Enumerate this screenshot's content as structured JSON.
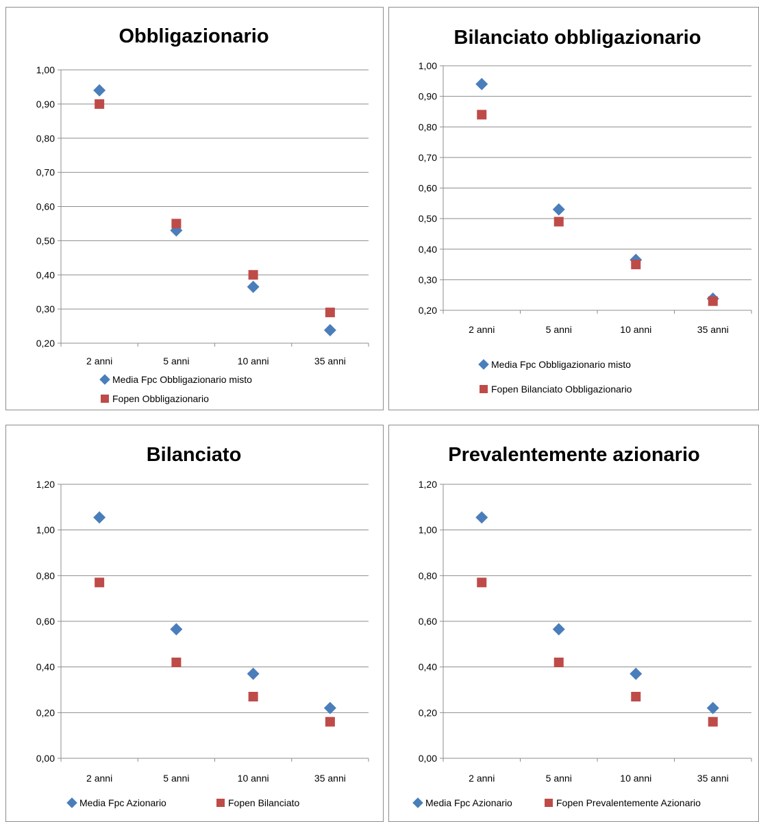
{
  "chart_data": [
    {
      "type": "scatter",
      "title": "Obbligazionario",
      "categories": [
        "2 anni",
        "5 anni",
        "10 anni",
        "35 anni"
      ],
      "y_ticks": [
        "1,00",
        "0,90",
        "0,80",
        "0,70",
        "0,60",
        "0,50",
        "0,40",
        "0,30",
        "0,20"
      ],
      "ylim": [
        0.2,
        1.0
      ],
      "grid": true,
      "legend_position": "bottom",
      "series": [
        {
          "name": "Media Fpc Obbligazionario misto",
          "marker": "diamond",
          "color": "#4a7ebb",
          "values": [
            0.94,
            0.53,
            0.365,
            0.238
          ]
        },
        {
          "name": "Fopen Obbligazionario",
          "marker": "square",
          "color": "#be4b48",
          "values": [
            0.9,
            0.55,
            0.4,
            0.29
          ]
        }
      ]
    },
    {
      "type": "scatter",
      "title": "Bilanciato obbligazionario",
      "categories": [
        "2 anni",
        "5 anni",
        "10 anni",
        "35 anni"
      ],
      "y_ticks": [
        "1,00",
        "0,90",
        "0,80",
        "0,70",
        "0,60",
        "0,50",
        "0,40",
        "0,30",
        "0,20"
      ],
      "ylim": [
        0.2,
        1.0
      ],
      "grid": true,
      "legend_position": "bottom",
      "series": [
        {
          "name": "Media Fpc Obbligazionario misto",
          "marker": "diamond",
          "color": "#4a7ebb",
          "values": [
            0.94,
            0.53,
            0.365,
            0.238
          ]
        },
        {
          "name": "Fopen Bilanciato Obbligazionario",
          "marker": "square",
          "color": "#be4b48",
          "values": [
            0.84,
            0.49,
            0.35,
            0.23
          ]
        }
      ]
    },
    {
      "type": "scatter",
      "title": "Bilanciato",
      "categories": [
        "2 anni",
        "5 anni",
        "10 anni",
        "35 anni"
      ],
      "y_ticks": [
        "1,20",
        "1,00",
        "0,80",
        "0,60",
        "0,40",
        "0,20",
        "0,00"
      ],
      "ylim": [
        0.0,
        1.2
      ],
      "grid": true,
      "legend_position": "bottom",
      "series": [
        {
          "name": "Media Fpc Azionario",
          "marker": "diamond",
          "color": "#4a7ebb",
          "values": [
            1.055,
            0.565,
            0.37,
            0.22
          ]
        },
        {
          "name": "Fopen Bilanciato",
          "marker": "square",
          "color": "#be4b48",
          "values": [
            0.77,
            0.42,
            0.27,
            0.16
          ]
        }
      ]
    },
    {
      "type": "scatter",
      "title": "Prevalentemente azionario",
      "categories": [
        "2 anni",
        "5 anni",
        "10 anni",
        "35 anni"
      ],
      "y_ticks": [
        "1,20",
        "1,00",
        "0,80",
        "0,60",
        "0,40",
        "0,20",
        "0,00"
      ],
      "ylim": [
        0.0,
        1.2
      ],
      "grid": true,
      "legend_position": "bottom",
      "series": [
        {
          "name": "Media Fpc Azionario",
          "marker": "diamond",
          "color": "#4a7ebb",
          "values": [
            1.055,
            0.565,
            0.37,
            0.22
          ]
        },
        {
          "name": "Fopen Prevalentemente Azionario",
          "marker": "square",
          "color": "#be4b48",
          "values": [
            0.77,
            0.42,
            0.27,
            0.16
          ]
        }
      ]
    }
  ]
}
